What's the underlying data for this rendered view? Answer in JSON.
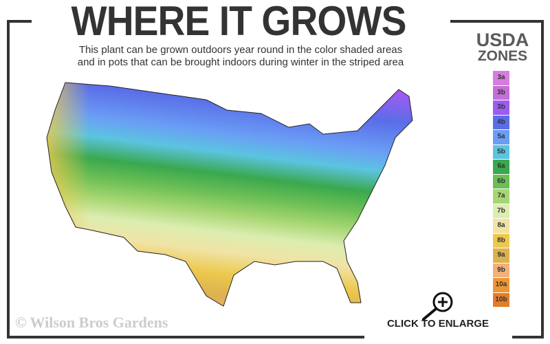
{
  "header": {
    "title": "WHERE IT GROWS",
    "subtitle_line1": "This plant can be grown outdoors year round in the color shaded areas",
    "subtitle_line2": "and in pots that can be brought indoors during winter in the striped area"
  },
  "legend": {
    "title_line1": "USDA",
    "title_line2": "ZONES",
    "zones": [
      {
        "label": "3a",
        "color": "#d67ee0"
      },
      {
        "label": "3b",
        "color": "#c46fd8"
      },
      {
        "label": "3b",
        "color": "#9d5cf0"
      },
      {
        "label": "4b",
        "color": "#5a6de8"
      },
      {
        "label": "5a",
        "color": "#6a9ef5"
      },
      {
        "label": "5b",
        "color": "#5bc4e0"
      },
      {
        "label": "6a",
        "color": "#3aa84e"
      },
      {
        "label": "6b",
        "color": "#6cbf55"
      },
      {
        "label": "7a",
        "color": "#a6d672"
      },
      {
        "label": "7b",
        "color": "#dcedb0"
      },
      {
        "label": "8a",
        "color": "#f0e3a5"
      },
      {
        "label": "8b",
        "color": "#ecc94e"
      },
      {
        "label": "9a",
        "color": "#dcb24f"
      },
      {
        "label": "9b",
        "color": "#f3b07a"
      },
      {
        "label": "10a",
        "color": "#ee9632"
      },
      {
        "label": "10b",
        "color": "#e37d2a"
      }
    ]
  },
  "footer": {
    "copyright": "© Wilson Bros Gardens",
    "enlarge_label": "CLICK TO ENLARGE"
  }
}
